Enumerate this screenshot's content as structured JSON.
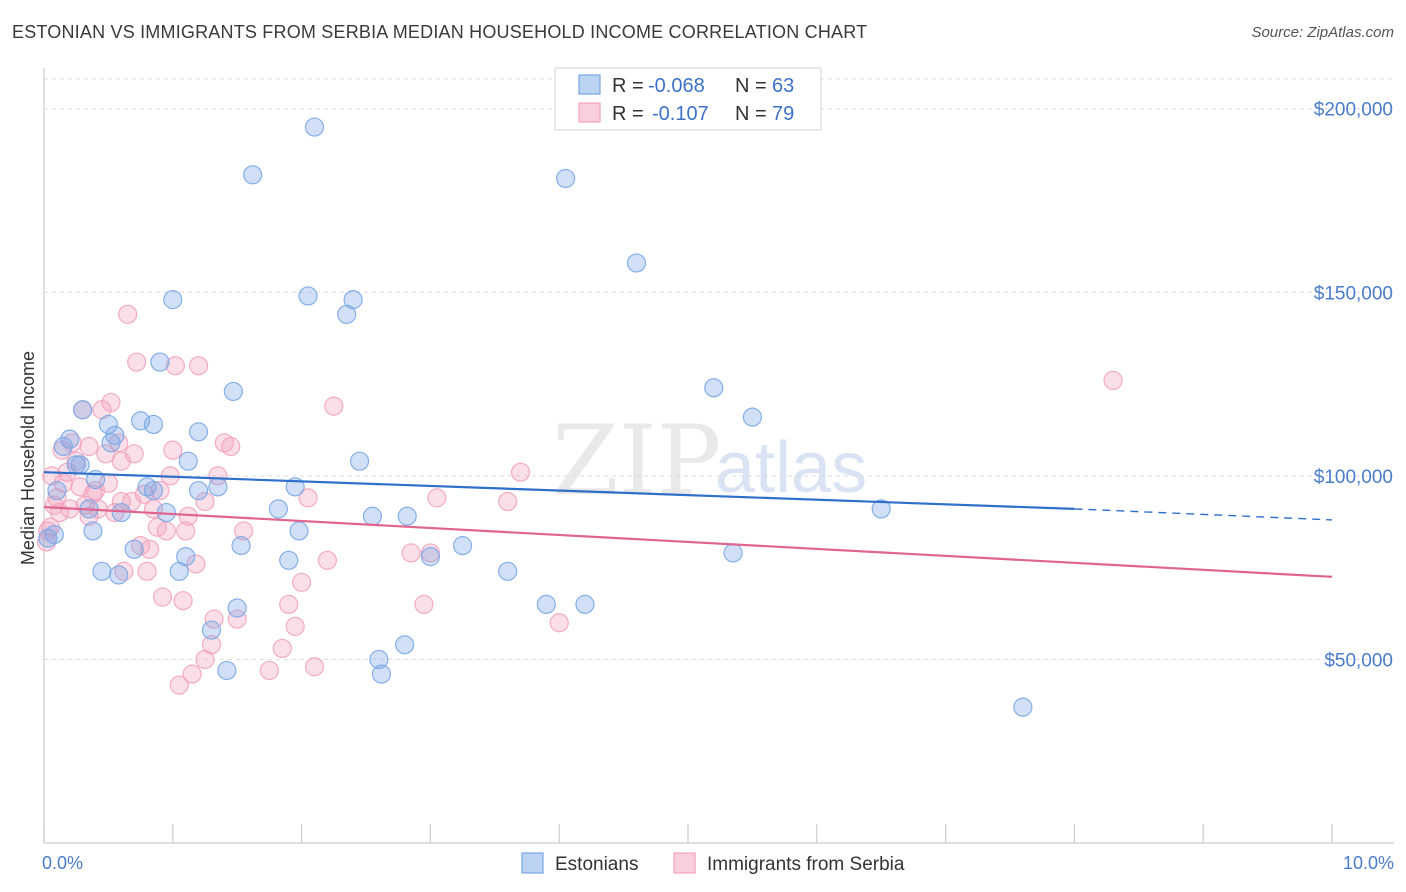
{
  "title": "ESTONIAN VS IMMIGRANTS FROM SERBIA MEDIAN HOUSEHOLD INCOME CORRELATION CHART",
  "source": "Source: ZipAtlas.com",
  "watermark": {
    "zip": "ZIP",
    "atlas": "atlas"
  },
  "colors": {
    "estonian": "#7aa7e6",
    "estonian_line": "#2f6fcc",
    "serbia": "#f2a3bd",
    "serbia_line": "#e0648f"
  },
  "legend": {
    "r_label": "R =",
    "n_label": "N =",
    "estonian": {
      "r": "-0.068",
      "n": "63"
    },
    "serbia": {
      "r": "-0.107",
      "n": "79"
    }
  },
  "chart_data": {
    "type": "scatter",
    "xlabel": "",
    "ylabel": "Median Household Income",
    "xlim": [
      0,
      10
    ],
    "ylim": [
      0,
      210000
    ],
    "x_tick_labels": [
      "0.0%",
      "10.0%"
    ],
    "y_ticks": [
      {
        "value": 50000,
        "label": "$50,000"
      },
      {
        "value": 100000,
        "label": "$100,000"
      },
      {
        "value": 150000,
        "label": "$150,000"
      },
      {
        "value": 200000,
        "label": "$200,000"
      }
    ],
    "series": [
      {
        "name": "Estonians",
        "trend": {
          "x0": 0.0,
          "y0": 101000,
          "x1": 8.0,
          "y1": 91000,
          "dash_to_x": 10.0,
          "dash_to_y": 88000
        },
        "points": [
          [
            0.08,
            84000
          ],
          [
            0.1,
            96000
          ],
          [
            0.15,
            108000
          ],
          [
            0.2,
            110000
          ],
          [
            0.25,
            103000
          ],
          [
            0.28,
            103000
          ],
          [
            0.3,
            118000
          ],
          [
            0.35,
            91000
          ],
          [
            0.38,
            85000
          ],
          [
            0.4,
            99000
          ],
          [
            0.45,
            74000
          ],
          [
            0.5,
            114000
          ],
          [
            0.52,
            109000
          ],
          [
            0.55,
            111000
          ],
          [
            0.58,
            73000
          ],
          [
            0.6,
            90000
          ],
          [
            0.7,
            80000
          ],
          [
            0.75,
            115000
          ],
          [
            0.8,
            97000
          ],
          [
            0.85,
            114000
          ],
          [
            0.85,
            96000
          ],
          [
            0.9,
            131000
          ],
          [
            0.95,
            90000
          ],
          [
            1.0,
            148000
          ],
          [
            1.05,
            74000
          ],
          [
            1.1,
            78000
          ],
          [
            1.12,
            104000
          ],
          [
            1.2,
            112000
          ],
          [
            1.2,
            96000
          ],
          [
            1.3,
            58000
          ],
          [
            1.35,
            97000
          ],
          [
            1.42,
            47000
          ],
          [
            1.47,
            123000
          ],
          [
            1.5,
            64000
          ],
          [
            1.53,
            81000
          ],
          [
            1.62,
            182000
          ],
          [
            1.82,
            91000
          ],
          [
            1.9,
            77000
          ],
          [
            1.95,
            97000
          ],
          [
            1.98,
            85000
          ],
          [
            2.05,
            149000
          ],
          [
            2.1,
            195000
          ],
          [
            2.35,
            144000
          ],
          [
            2.4,
            148000
          ],
          [
            2.45,
            104000
          ],
          [
            2.55,
            89000
          ],
          [
            2.6,
            50000
          ],
          [
            2.62,
            46000
          ],
          [
            2.8,
            54000
          ],
          [
            2.82,
            89000
          ],
          [
            3.0,
            78000
          ],
          [
            3.25,
            81000
          ],
          [
            3.6,
            74000
          ],
          [
            3.9,
            65000
          ],
          [
            4.05,
            181000
          ],
          [
            4.2,
            65000
          ],
          [
            4.6,
            158000
          ],
          [
            5.2,
            124000
          ],
          [
            5.35,
            79000
          ],
          [
            5.5,
            116000
          ],
          [
            6.5,
            91000
          ],
          [
            7.6,
            37000
          ],
          [
            0.03,
            83000
          ]
        ]
      },
      {
        "name": "Immigrants from Serbia",
        "trend": {
          "x0": 0.0,
          "y0": 91500,
          "x1": 10.0,
          "y1": 72500
        },
        "points": [
          [
            0.02,
            82000
          ],
          [
            0.05,
            86000
          ],
          [
            0.08,
            92000
          ],
          [
            0.12,
            90000
          ],
          [
            0.15,
            98000
          ],
          [
            0.18,
            101000
          ],
          [
            0.2,
            91000
          ],
          [
            0.22,
            109000
          ],
          [
            0.25,
            104000
          ],
          [
            0.28,
            97000
          ],
          [
            0.3,
            118000
          ],
          [
            0.32,
            92000
          ],
          [
            0.35,
            89000
          ],
          [
            0.38,
            95000
          ],
          [
            0.4,
            96000
          ],
          [
            0.42,
            91000
          ],
          [
            0.45,
            118000
          ],
          [
            0.48,
            106000
          ],
          [
            0.5,
            98000
          ],
          [
            0.52,
            120000
          ],
          [
            0.55,
            90000
          ],
          [
            0.58,
            109000
          ],
          [
            0.6,
            104000
          ],
          [
            0.62,
            74000
          ],
          [
            0.65,
            144000
          ],
          [
            0.68,
            93000
          ],
          [
            0.7,
            106000
          ],
          [
            0.72,
            131000
          ],
          [
            0.75,
            81000
          ],
          [
            0.78,
            95000
          ],
          [
            0.8,
            74000
          ],
          [
            0.82,
            80000
          ],
          [
            0.85,
            91000
          ],
          [
            0.88,
            86000
          ],
          [
            0.9,
            96000
          ],
          [
            0.92,
            67000
          ],
          [
            0.95,
            85000
          ],
          [
            0.98,
            100000
          ],
          [
            1.0,
            107000
          ],
          [
            1.02,
            130000
          ],
          [
            1.05,
            43000
          ],
          [
            1.08,
            66000
          ],
          [
            1.1,
            85000
          ],
          [
            1.12,
            89000
          ],
          [
            1.15,
            46000
          ],
          [
            1.18,
            76000
          ],
          [
            1.2,
            130000
          ],
          [
            1.25,
            50000
          ],
          [
            1.3,
            54000
          ],
          [
            1.32,
            61000
          ],
          [
            1.35,
            100000
          ],
          [
            1.4,
            109000
          ],
          [
            1.45,
            108000
          ],
          [
            1.5,
            61000
          ],
          [
            1.55,
            85000
          ],
          [
            1.75,
            47000
          ],
          [
            1.85,
            53000
          ],
          [
            1.9,
            65000
          ],
          [
            1.95,
            59000
          ],
          [
            2.0,
            71000
          ],
          [
            2.05,
            94000
          ],
          [
            2.1,
            48000
          ],
          [
            2.2,
            77000
          ],
          [
            2.25,
            119000
          ],
          [
            2.85,
            79000
          ],
          [
            2.95,
            65000
          ],
          [
            3.0,
            79000
          ],
          [
            3.05,
            94000
          ],
          [
            3.6,
            93000
          ],
          [
            3.7,
            101000
          ],
          [
            4.0,
            60000
          ],
          [
            0.03,
            85000
          ],
          [
            0.06,
            100000
          ],
          [
            0.1,
            94000
          ],
          [
            0.14,
            107000
          ],
          [
            0.35,
            108000
          ],
          [
            0.6,
            93000
          ],
          [
            1.25,
            93000
          ],
          [
            8.3,
            126000
          ]
        ]
      }
    ]
  }
}
